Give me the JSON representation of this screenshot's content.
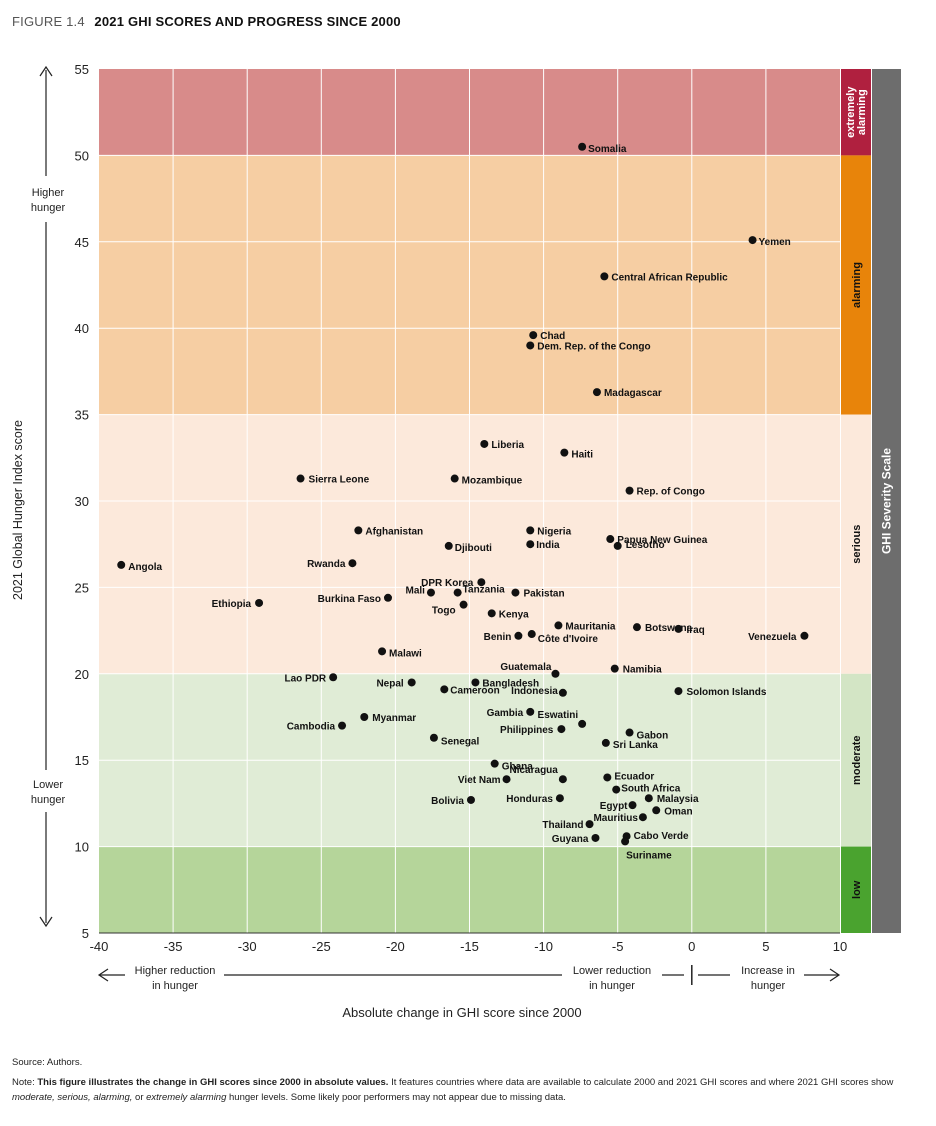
{
  "header": {
    "figure_number": "FIGURE 1.4",
    "title": "2021 GHI SCORES AND PROGRESS SINCE 2000"
  },
  "colors": {
    "extremely_alarming_band": "#d88b8a",
    "alarming_band": "#f6cea3",
    "serious_band": "#fce9db",
    "moderate_band": "#e0ecd6",
    "low_band": "#b5d59a",
    "extremely_alarming_label": "#b0203f",
    "alarming_label": "#e8840a",
    "serious_label": "#fce9db",
    "moderate_label": "#d3e5c5",
    "low_label": "#4aa32f",
    "scale_bar": "#6d6d6d",
    "point": "#111111"
  },
  "chart_data": {
    "type": "scatter",
    "title": "2021 GHI SCORES AND PROGRESS SINCE 2000",
    "xlabel": "Absolute change in GHI score since 2000",
    "ylabel": "2021 Global Hunger Index score",
    "xlim": [
      -40,
      10
    ],
    "ylim": [
      5,
      55
    ],
    "xticks": [
      -40,
      -35,
      -30,
      -25,
      -20,
      -15,
      -10,
      -5,
      0,
      5,
      10
    ],
    "yticks": [
      5,
      10,
      15,
      20,
      25,
      30,
      35,
      40,
      45,
      50,
      55
    ],
    "grid": true,
    "y_annotations": {
      "top": "Higher\nhunger",
      "bottom": "Lower\nhunger"
    },
    "x_annotations": {
      "left": "Higher reduction\nin hunger",
      "middle": "Lower reduction\nin hunger",
      "right": "Increase in\nhunger"
    },
    "severity_scale_title": "GHI Severity Scale",
    "bands": [
      {
        "label": "extremely\nalarming",
        "from": 50,
        "to": 55
      },
      {
        "label": "alarming",
        "from": 35,
        "to": 50
      },
      {
        "label": "serious",
        "from": 20,
        "to": 35
      },
      {
        "label": "moderate",
        "from": 10,
        "to": 20
      },
      {
        "label": "low",
        "from": 5,
        "to": 10
      }
    ],
    "points": [
      {
        "name": "Somalia",
        "x": -7.4,
        "y": 50.5
      },
      {
        "name": "Yemen",
        "x": 4.1,
        "y": 45.1
      },
      {
        "name": "Central African Republic",
        "x": -5.9,
        "y": 43.0
      },
      {
        "name": "Chad",
        "x": -10.7,
        "y": 39.6
      },
      {
        "name": "Dem. Rep. of the Congo",
        "x": -10.9,
        "y": 39.0
      },
      {
        "name": "Madagascar",
        "x": -6.4,
        "y": 36.3
      },
      {
        "name": "Liberia",
        "x": -14.0,
        "y": 33.3
      },
      {
        "name": "Haiti",
        "x": -8.6,
        "y": 32.8
      },
      {
        "name": "Sierra Leone",
        "x": -26.4,
        "y": 31.3
      },
      {
        "name": "Mozambique",
        "x": -16.0,
        "y": 31.3
      },
      {
        "name": "Rep. of Congo",
        "x": -4.2,
        "y": 30.6
      },
      {
        "name": "Afghanistan",
        "x": -22.5,
        "y": 28.3
      },
      {
        "name": "Nigeria",
        "x": -10.9,
        "y": 28.3
      },
      {
        "name": "Papua New Guinea",
        "x": -5.5,
        "y": 27.8
      },
      {
        "name": "Djibouti",
        "x": -16.4,
        "y": 27.4
      },
      {
        "name": "India",
        "x": -10.9,
        "y": 27.5
      },
      {
        "name": "Lesotho",
        "x": -5.0,
        "y": 27.4
      },
      {
        "name": "Angola",
        "x": -38.5,
        "y": 26.3
      },
      {
        "name": "Rwanda",
        "x": -22.9,
        "y": 26.4
      },
      {
        "name": "DPR Korea",
        "x": -14.2,
        "y": 25.3
      },
      {
        "name": "Ethiopia",
        "x": -29.2,
        "y": 24.1
      },
      {
        "name": "Burkina Faso",
        "x": -20.5,
        "y": 24.4
      },
      {
        "name": "Mali",
        "x": -17.6,
        "y": 24.7
      },
      {
        "name": "Tanzania",
        "x": -15.8,
        "y": 24.7
      },
      {
        "name": "Pakistan",
        "x": -11.9,
        "y": 24.7
      },
      {
        "name": "Togo",
        "x": -15.4,
        "y": 24.0
      },
      {
        "name": "Kenya",
        "x": -13.5,
        "y": 23.5
      },
      {
        "name": "Botswana",
        "x": -3.7,
        "y": 22.7
      },
      {
        "name": "Mauritania",
        "x": -9.0,
        "y": 22.8
      },
      {
        "name": "Benin",
        "x": -11.7,
        "y": 22.2
      },
      {
        "name": "Côte d'Ivoire",
        "x": -10.8,
        "y": 22.3
      },
      {
        "name": "Iraq",
        "x": -0.9,
        "y": 22.6
      },
      {
        "name": "Venezuela",
        "x": 7.6,
        "y": 22.2
      },
      {
        "name": "Malawi",
        "x": -20.9,
        "y": 21.3
      },
      {
        "name": "Guatemala",
        "x": -9.2,
        "y": 20.0
      },
      {
        "name": "Namibia",
        "x": -5.2,
        "y": 20.3
      },
      {
        "name": "Lao PDR",
        "x": -24.2,
        "y": 19.8
      },
      {
        "name": "Nepal",
        "x": -18.9,
        "y": 19.5
      },
      {
        "name": "Bangladesh",
        "x": -14.6,
        "y": 19.5
      },
      {
        "name": "Cameroon",
        "x": -16.7,
        "y": 19.1
      },
      {
        "name": "Indonesia",
        "x": -8.7,
        "y": 18.9
      },
      {
        "name": "Solomon Islands",
        "x": -0.9,
        "y": 19.0
      },
      {
        "name": "Gambia",
        "x": -10.9,
        "y": 17.8
      },
      {
        "name": "Myanmar",
        "x": -22.1,
        "y": 17.5
      },
      {
        "name": "Cambodia",
        "x": -23.6,
        "y": 17.0
      },
      {
        "name": "Eswatini",
        "x": -7.4,
        "y": 17.1
      },
      {
        "name": "Philippines",
        "x": -8.8,
        "y": 16.8
      },
      {
        "name": "Gabon",
        "x": -4.2,
        "y": 16.6
      },
      {
        "name": "Senegal",
        "x": -17.4,
        "y": 16.3
      },
      {
        "name": "Sri Lanka",
        "x": -5.8,
        "y": 16.0
      },
      {
        "name": "Ghana",
        "x": -13.3,
        "y": 14.8
      },
      {
        "name": "Nicaragua",
        "x": -8.7,
        "y": 13.9
      },
      {
        "name": "Viet Nam",
        "x": -12.5,
        "y": 13.9
      },
      {
        "name": "Ecuador",
        "x": -5.7,
        "y": 14.0
      },
      {
        "name": "South Africa",
        "x": -5.1,
        "y": 13.3
      },
      {
        "name": "Bolivia",
        "x": -14.9,
        "y": 12.7
      },
      {
        "name": "Honduras",
        "x": -8.9,
        "y": 12.8
      },
      {
        "name": "Malaysia",
        "x": -2.9,
        "y": 12.8
      },
      {
        "name": "Egypt",
        "x": -4.0,
        "y": 12.4
      },
      {
        "name": "Oman",
        "x": -2.4,
        "y": 12.1
      },
      {
        "name": "Mauritius",
        "x": -3.3,
        "y": 11.7
      },
      {
        "name": "Thailand",
        "x": -6.9,
        "y": 11.3
      },
      {
        "name": "Guyana",
        "x": -6.5,
        "y": 10.5
      },
      {
        "name": "Cabo Verde",
        "x": -4.4,
        "y": 10.6
      },
      {
        "name": "Suriname",
        "x": -4.5,
        "y": 10.3
      }
    ]
  },
  "footer": {
    "source": "Source: Authors.",
    "note_prefix": "Note: ",
    "note_bold": "This figure illustrates the change in GHI scores since 2000 in absolute values.",
    "note_part1": " It features countries where data are available to calculate 2000 and 2021 GHI scores and where 2021 GHI scores show ",
    "note_italic1": "moderate, serious, alarming,",
    "note_part2": " or ",
    "note_italic2": "extremely alarming",
    "note_part3": " hunger levels. Some likely poor performers may not appear due to missing data."
  }
}
